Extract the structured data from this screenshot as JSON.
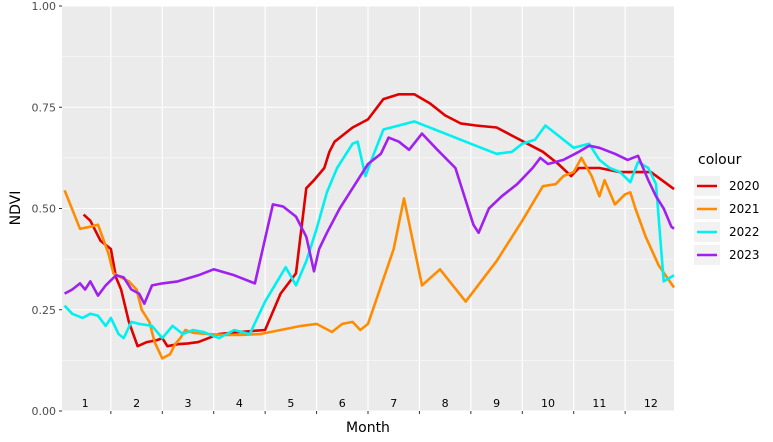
{
  "chart_data": {
    "type": "line",
    "xlabel": "Month",
    "ylabel": "NDVI",
    "ylim": [
      0,
      1
    ],
    "xlim": [
      0.55,
      12.45
    ],
    "yticks": [
      0,
      0.25,
      0.5,
      0.75,
      1
    ],
    "ytick_labels": [
      "0.00",
      "0.25",
      "0.50",
      "0.75",
      "1.00"
    ],
    "month_labels": [
      "1",
      "2",
      "3",
      "4",
      "5",
      "6",
      "7",
      "8",
      "9",
      "10",
      "11",
      "12"
    ],
    "grid": true,
    "legend": {
      "title": "colour",
      "position": "right"
    },
    "series": [
      {
        "name": "2020",
        "color": "#e00000",
        "points": [
          [
            0.97,
            0.485
          ],
          [
            1.1,
            0.47
          ],
          [
            1.3,
            0.42
          ],
          [
            1.5,
            0.4
          ],
          [
            1.6,
            0.33
          ],
          [
            1.7,
            0.3
          ],
          [
            1.85,
            0.22
          ],
          [
            2.02,
            0.16
          ],
          [
            2.2,
            0.17
          ],
          [
            2.4,
            0.175
          ],
          [
            2.5,
            0.18
          ],
          [
            2.6,
            0.16
          ],
          [
            2.8,
            0.165
          ],
          [
            3.0,
            0.167
          ],
          [
            3.2,
            0.17
          ],
          [
            3.6,
            0.19
          ],
          [
            4.0,
            0.195
          ],
          [
            4.5,
            0.2
          ],
          [
            4.8,
            0.29
          ],
          [
            5.1,
            0.34
          ],
          [
            5.3,
            0.55
          ],
          [
            5.45,
            0.57
          ],
          [
            5.65,
            0.6
          ],
          [
            5.75,
            0.64
          ],
          [
            5.85,
            0.665
          ],
          [
            6.0,
            0.68
          ],
          [
            6.2,
            0.7
          ],
          [
            6.5,
            0.72
          ],
          [
            6.8,
            0.77
          ],
          [
            7.1,
            0.782
          ],
          [
            7.4,
            0.782
          ],
          [
            7.7,
            0.76
          ],
          [
            8.0,
            0.73
          ],
          [
            8.3,
            0.71
          ],
          [
            8.6,
            0.705
          ],
          [
            9.0,
            0.7
          ],
          [
            9.3,
            0.68
          ],
          [
            9.6,
            0.66
          ],
          [
            9.9,
            0.64
          ],
          [
            10.2,
            0.61
          ],
          [
            10.45,
            0.58
          ],
          [
            10.6,
            0.6
          ],
          [
            11.0,
            0.6
          ],
          [
            11.4,
            0.59
          ],
          [
            11.8,
            0.59
          ],
          [
            12.0,
            0.59
          ],
          [
            12.45,
            0.548
          ]
        ]
      },
      {
        "name": "2021",
        "color": "#ff8c00",
        "points": [
          [
            0.6,
            0.545
          ],
          [
            0.9,
            0.45
          ],
          [
            1.1,
            0.455
          ],
          [
            1.25,
            0.46
          ],
          [
            1.45,
            0.39
          ],
          [
            1.55,
            0.34
          ],
          [
            1.7,
            0.33
          ],
          [
            1.85,
            0.32
          ],
          [
            2.0,
            0.3
          ],
          [
            2.1,
            0.25
          ],
          [
            2.25,
            0.22
          ],
          [
            2.35,
            0.17
          ],
          [
            2.5,
            0.13
          ],
          [
            2.65,
            0.14
          ],
          [
            2.75,
            0.165
          ],
          [
            2.85,
            0.18
          ],
          [
            2.95,
            0.2
          ],
          [
            3.1,
            0.193
          ],
          [
            3.4,
            0.19
          ],
          [
            3.7,
            0.188
          ],
          [
            4.0,
            0.188
          ],
          [
            4.4,
            0.19
          ],
          [
            4.8,
            0.2
          ],
          [
            5.2,
            0.21
          ],
          [
            5.5,
            0.215
          ],
          [
            5.8,
            0.195
          ],
          [
            6.0,
            0.215
          ],
          [
            6.2,
            0.22
          ],
          [
            6.35,
            0.2
          ],
          [
            6.5,
            0.215
          ],
          [
            7.0,
            0.4
          ],
          [
            7.2,
            0.525
          ],
          [
            7.55,
            0.31
          ],
          [
            7.9,
            0.35
          ],
          [
            8.4,
            0.27
          ],
          [
            9.0,
            0.37
          ],
          [
            9.5,
            0.47
          ],
          [
            9.9,
            0.555
          ],
          [
            10.15,
            0.56
          ],
          [
            10.3,
            0.58
          ],
          [
            10.5,
            0.59
          ],
          [
            10.65,
            0.625
          ],
          [
            10.85,
            0.58
          ],
          [
            11.0,
            0.53
          ],
          [
            11.1,
            0.57
          ],
          [
            11.3,
            0.51
          ],
          [
            11.5,
            0.535
          ],
          [
            11.6,
            0.54
          ],
          [
            11.7,
            0.5
          ],
          [
            11.9,
            0.43
          ],
          [
            12.15,
            0.36
          ],
          [
            12.45,
            0.305
          ]
        ]
      },
      {
        "name": "2022",
        "color": "#00f0f0",
        "points": [
          [
            0.6,
            0.26
          ],
          [
            0.75,
            0.24
          ],
          [
            0.95,
            0.23
          ],
          [
            1.1,
            0.24
          ],
          [
            1.25,
            0.235
          ],
          [
            1.4,
            0.21
          ],
          [
            1.5,
            0.23
          ],
          [
            1.65,
            0.19
          ],
          [
            1.75,
            0.18
          ],
          [
            1.9,
            0.22
          ],
          [
            2.05,
            0.215
          ],
          [
            2.3,
            0.21
          ],
          [
            2.5,
            0.18
          ],
          [
            2.7,
            0.21
          ],
          [
            2.9,
            0.19
          ],
          [
            3.1,
            0.2
          ],
          [
            3.3,
            0.195
          ],
          [
            3.6,
            0.18
          ],
          [
            3.9,
            0.2
          ],
          [
            4.2,
            0.19
          ],
          [
            4.5,
            0.27
          ],
          [
            4.9,
            0.355
          ],
          [
            5.1,
            0.31
          ],
          [
            5.3,
            0.37
          ],
          [
            5.5,
            0.45
          ],
          [
            5.7,
            0.54
          ],
          [
            5.9,
            0.6
          ],
          [
            6.2,
            0.66
          ],
          [
            6.3,
            0.665
          ],
          [
            6.45,
            0.58
          ],
          [
            6.6,
            0.63
          ],
          [
            6.8,
            0.695
          ],
          [
            7.1,
            0.705
          ],
          [
            7.4,
            0.715
          ],
          [
            8.0,
            0.685
          ],
          [
            8.7,
            0.65
          ],
          [
            9.0,
            0.635
          ],
          [
            9.3,
            0.64
          ],
          [
            9.5,
            0.66
          ],
          [
            9.75,
            0.67
          ],
          [
            9.95,
            0.705
          ],
          [
            10.2,
            0.68
          ],
          [
            10.5,
            0.65
          ],
          [
            10.8,
            0.66
          ],
          [
            11.0,
            0.62
          ],
          [
            11.2,
            0.6
          ],
          [
            11.4,
            0.59
          ],
          [
            11.6,
            0.565
          ],
          [
            11.75,
            0.615
          ],
          [
            11.95,
            0.6
          ],
          [
            12.1,
            0.56
          ],
          [
            12.25,
            0.32
          ],
          [
            12.45,
            0.335
          ]
        ]
      },
      {
        "name": "2023",
        "color": "#a020f0",
        "points": [
          [
            0.6,
            0.29
          ],
          [
            0.75,
            0.3
          ],
          [
            0.9,
            0.315
          ],
          [
            1.0,
            0.3
          ],
          [
            1.1,
            0.32
          ],
          [
            1.25,
            0.285
          ],
          [
            1.4,
            0.31
          ],
          [
            1.6,
            0.335
          ],
          [
            1.75,
            0.33
          ],
          [
            1.9,
            0.3
          ],
          [
            2.05,
            0.29
          ],
          [
            2.15,
            0.265
          ],
          [
            2.3,
            0.31
          ],
          [
            2.5,
            0.315
          ],
          [
            2.8,
            0.32
          ],
          [
            3.2,
            0.335
          ],
          [
            3.5,
            0.35
          ],
          [
            3.9,
            0.335
          ],
          [
            4.3,
            0.315
          ],
          [
            4.65,
            0.51
          ],
          [
            4.85,
            0.505
          ],
          [
            5.1,
            0.48
          ],
          [
            5.3,
            0.43
          ],
          [
            5.45,
            0.345
          ],
          [
            5.55,
            0.4
          ],
          [
            5.7,
            0.44
          ],
          [
            5.95,
            0.5
          ],
          [
            6.2,
            0.55
          ],
          [
            6.5,
            0.61
          ],
          [
            6.75,
            0.635
          ],
          [
            6.9,
            0.675
          ],
          [
            7.1,
            0.665
          ],
          [
            7.3,
            0.645
          ],
          [
            7.55,
            0.685
          ],
          [
            7.85,
            0.645
          ],
          [
            8.2,
            0.6
          ],
          [
            8.55,
            0.46
          ],
          [
            8.65,
            0.44
          ],
          [
            8.85,
            0.5
          ],
          [
            9.1,
            0.53
          ],
          [
            9.4,
            0.56
          ],
          [
            9.7,
            0.6
          ],
          [
            9.85,
            0.625
          ],
          [
            10.0,
            0.61
          ],
          [
            10.3,
            0.62
          ],
          [
            10.6,
            0.64
          ],
          [
            10.8,
            0.655
          ],
          [
            11.0,
            0.65
          ],
          [
            11.3,
            0.635
          ],
          [
            11.55,
            0.62
          ],
          [
            11.75,
            0.63
          ],
          [
            11.95,
            0.57
          ],
          [
            12.1,
            0.53
          ],
          [
            12.25,
            0.5
          ],
          [
            12.4,
            0.455
          ],
          [
            12.45,
            0.45
          ]
        ]
      }
    ]
  }
}
